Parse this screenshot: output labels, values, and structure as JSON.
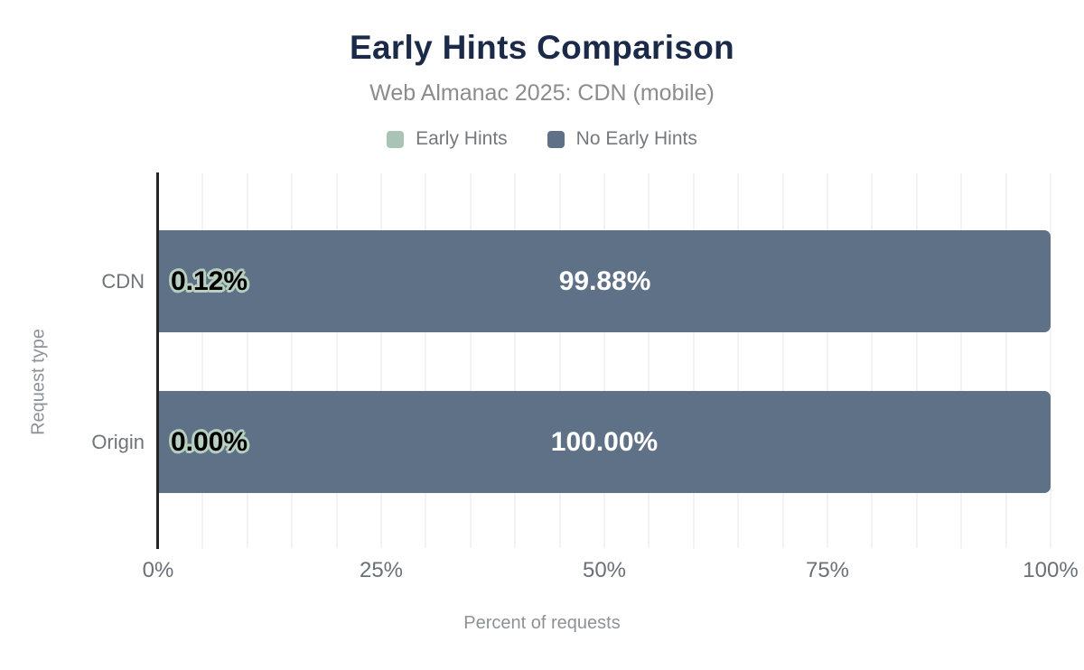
{
  "header": {
    "title": "Early Hints Comparison",
    "subtitle": "Web Almanac 2025: CDN (mobile)"
  },
  "legend": [
    {
      "label": "Early Hints",
      "color": "#a9c3b4"
    },
    {
      "label": "No Early Hints",
      "color": "#5f7186"
    }
  ],
  "colors": {
    "title": "#1b2a49",
    "subtitle": "#8c8c8c",
    "bar_slate": "#5f7186",
    "bar_sage": "#a9c3b4",
    "bar_label_outline": "#b7cfc1",
    "bar_label_dark": "#000000",
    "bar_label_light": "#ffffff",
    "gridline": "#f3f3f3",
    "axis_line": "#222629",
    "axis_text": "#697077",
    "axis_title": "#8c9297",
    "background": "#ffffff"
  },
  "chart_data": {
    "type": "bar",
    "orientation": "horizontal",
    "stacked": true,
    "title": "Early Hints Comparison",
    "subtitle": "Web Almanac 2025: CDN (mobile)",
    "categories": [
      "CDN",
      "Origin"
    ],
    "series": [
      {
        "name": "Early Hints",
        "color": "#a9c3b4",
        "values": [
          0.12,
          0.0
        ],
        "labels": [
          "0.12%",
          "0.00%"
        ]
      },
      {
        "name": "No Early Hints",
        "color": "#5f7186",
        "values": [
          99.88,
          100.0
        ],
        "labels": [
          "99.88%",
          "100.00%"
        ]
      }
    ],
    "xlabel": "Percent of requests",
    "ylabel": "Request type",
    "xlim": [
      0,
      100
    ],
    "x_ticks": [
      {
        "label": "0%",
        "value": 0
      },
      {
        "label": "25%",
        "value": 25
      },
      {
        "label": "50%",
        "value": 50
      },
      {
        "label": "75%",
        "value": 75
      },
      {
        "label": "100%",
        "value": 100
      }
    ],
    "grid": "vertical gridlines every 5%",
    "legend_position": "top"
  }
}
